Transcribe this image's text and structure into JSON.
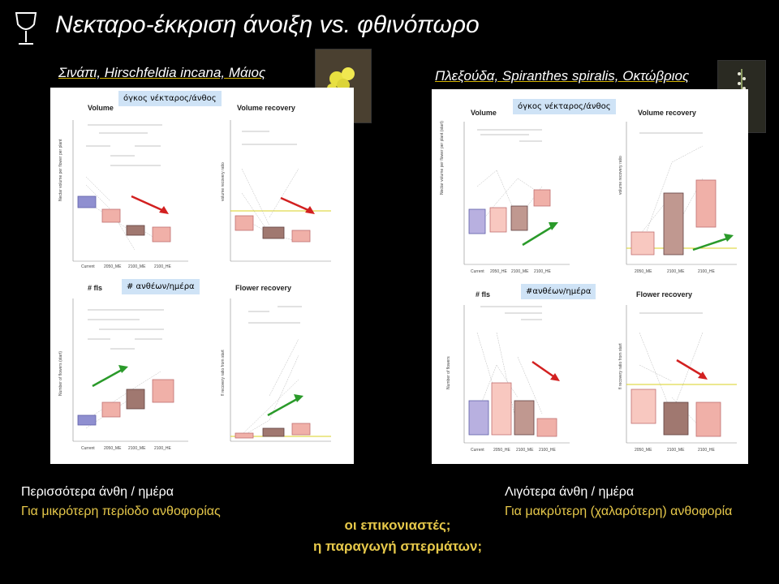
{
  "title": "Νεκταρο-έκκριση άνοιξη vs. φθινόπωρο",
  "left": {
    "heading": "Σινάπι, Hirschfeldia incana, Μάιος",
    "chip_volume": "όγκος νέκταρος/άνθος",
    "chip_flowers": "# ανθέων/ημέρα",
    "plot_titles": [
      "Volume",
      "Volume recovery",
      "# fls",
      "Flower recovery"
    ],
    "x_ticks": [
      "Current",
      "2050_ME",
      "2100_ME",
      "2100_HE"
    ],
    "ylabel_tl": "Nectar volume per flower per plant",
    "ylabel_tr": "volume recovery ratio",
    "ylabel_bl": "Number of flowers (start)",
    "ylabel_br": "fl recovery ratio from start",
    "caption_line1": "Περισσότερα άνθη / ημέρα",
    "caption_line2": "Για μικρότερη περίοδο ανθοφορίας"
  },
  "right": {
    "heading": "Πλεξούδα, Spiranthes spiralis, Οκτώβριος",
    "chip_volume": "όγκος νέκταρος/άνθος",
    "chip_flowers": "#ανθέων/ημέρα",
    "plot_titles": [
      "Volume",
      "Volume recovery",
      "# fls",
      "Flower recovery"
    ],
    "x_ticks": [
      "Current",
      "2050_HE",
      "2100_ME",
      "2100_HE"
    ],
    "x_ticks_tr": [
      "2050_ME",
      "2100_ME",
      "2100_HE"
    ],
    "ylabel_tl": "Nectar volume per flower per plant (start)",
    "ylabel_tr": "volume recovery ratio",
    "ylabel_bl": "Number of flowers",
    "ylabel_br": "fl recovery ratio from start",
    "caption_line1": "Λιγότερα άνθη / ημέρα",
    "caption_line2": "Για μακρύτερη (χαλαρότερη) ανθοφορία"
  },
  "questions": [
    "οι επικονιαστές;",
    "η παραγωγή σπερμάτων;"
  ],
  "colors": {
    "accent_yellow": "#e6c84a",
    "chip_bg": "#cfe3f6",
    "arrow_red": "#d22020",
    "arrow_green": "#2a9a2a",
    "box_blue": "#8f8fd0",
    "box_salmon": "#f0a8a0",
    "box_brown": "#9a6a60"
  }
}
